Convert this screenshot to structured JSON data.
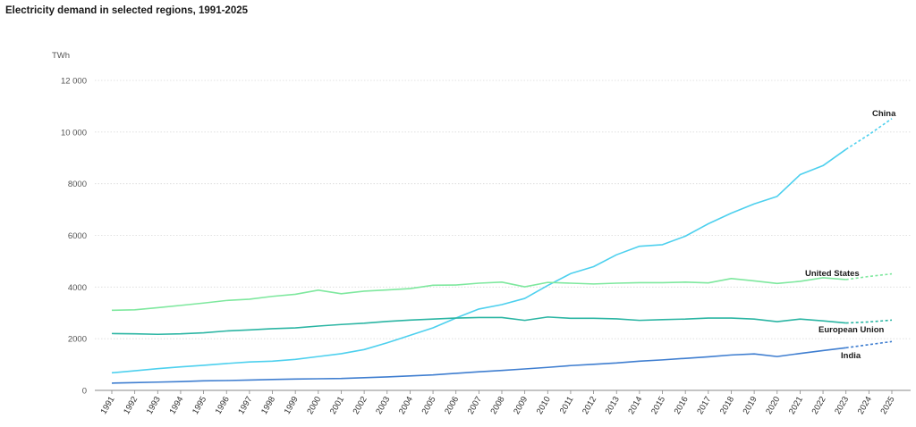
{
  "chart_data": {
    "type": "line",
    "title": "Electricity demand in selected regions, 1991-2025",
    "ylabel": "TWh",
    "ylim": [
      0,
      12000
    ],
    "yticks": [
      0,
      2000,
      4000,
      6000,
      8000,
      10000,
      12000
    ],
    "ytick_labels": [
      "0",
      "2000",
      "4000",
      "6000",
      "8000",
      "10 000",
      "12 000"
    ],
    "grid": "horizontal",
    "x": [
      "1991",
      "1992",
      "1993",
      "1994",
      "1995",
      "1996",
      "1997",
      "1998",
      "1999",
      "2000",
      "2001",
      "2002",
      "2003",
      "2004",
      "2005",
      "2006",
      "2007",
      "2008",
      "2009",
      "2010",
      "2011",
      "2012",
      "2013",
      "2014",
      "2015",
      "2016",
      "2017",
      "2018",
      "2019",
      "2020",
      "2021",
      "2022",
      "2023",
      "2024",
      "2025"
    ],
    "forecast_from": "2023",
    "series": [
      {
        "name": "China",
        "color": "#4dd0ee",
        "values": [
          680,
          760,
          840,
          910,
          970,
          1040,
          1100,
          1130,
          1200,
          1310,
          1420,
          1580,
          1840,
          2130,
          2420,
          2800,
          3150,
          3320,
          3560,
          4060,
          4520,
          4790,
          5250,
          5580,
          5640,
          5970,
          6450,
          6860,
          7220,
          7510,
          8350,
          8700,
          9330,
          9900,
          10520
        ]
      },
      {
        "name": "United States",
        "color": "#7ee89e",
        "values": [
          3100,
          3120,
          3200,
          3290,
          3380,
          3480,
          3530,
          3640,
          3720,
          3880,
          3740,
          3840,
          3890,
          3940,
          4070,
          4080,
          4150,
          4190,
          4010,
          4180,
          4150,
          4120,
          4150,
          4170,
          4170,
          4190,
          4160,
          4330,
          4240,
          4140,
          4220,
          4360,
          4290,
          4410,
          4510
        ]
      },
      {
        "name": "European Union",
        "color": "#2bb5a3",
        "values": [
          2200,
          2190,
          2170,
          2190,
          2230,
          2300,
          2340,
          2390,
          2420,
          2490,
          2550,
          2600,
          2670,
          2720,
          2760,
          2800,
          2820,
          2820,
          2710,
          2840,
          2790,
          2790,
          2770,
          2710,
          2740,
          2760,
          2800,
          2800,
          2760,
          2660,
          2760,
          2690,
          2610,
          2650,
          2720
        ]
      },
      {
        "name": "India",
        "color": "#3f7ed0",
        "values": [
          280,
          300,
          320,
          340,
          370,
          380,
          400,
          420,
          440,
          450,
          460,
          490,
          520,
          560,
          600,
          660,
          720,
          770,
          830,
          890,
          960,
          1010,
          1060,
          1130,
          1180,
          1240,
          1300,
          1370,
          1410,
          1310,
          1430,
          1540,
          1650,
          1770,
          1890
        ]
      }
    ]
  }
}
